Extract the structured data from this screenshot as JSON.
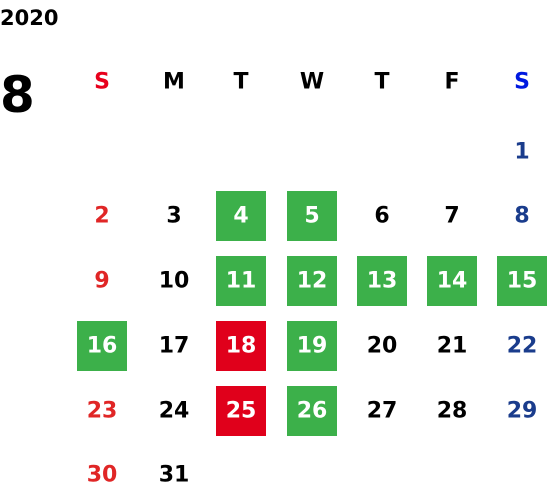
{
  "year": "2020",
  "month": "8",
  "weekdays": [
    "S",
    "M",
    "T",
    "W",
    "T",
    "F",
    "S"
  ],
  "header_colors": [
    "#e8001c",
    "#000000",
    "#000000",
    "#000000",
    "#000000",
    "#000000",
    "#0019e0"
  ],
  "day_colors": [
    "#e02626",
    "#000000",
    "#000000",
    "#000000",
    "#000000",
    "#000000",
    "#1a3c8c"
  ],
  "weeks": [
    [
      null,
      null,
      null,
      null,
      null,
      null,
      1
    ],
    [
      2,
      3,
      {
        "day": 4,
        "color": "#3cb04a"
      },
      {
        "day": 5,
        "color": "#3cb04a"
      },
      6,
      7,
      8
    ],
    [
      9,
      10,
      {
        "day": 11,
        "color": "#3cb04a"
      },
      {
        "day": 12,
        "color": "#3cb04a"
      },
      {
        "day": 13,
        "color": "#3cb04a"
      },
      {
        "day": 14,
        "color": "#3cb04a"
      },
      {
        "day": 15,
        "color": "#3cb04a"
      }
    ],
    [
      {
        "day": 16,
        "color": "#3cb04a"
      },
      17,
      {
        "day": 18,
        "color": "#e0001b"
      },
      {
        "day": 19,
        "color": "#3cb04a"
      },
      20,
      21,
      22
    ],
    [
      23,
      24,
      {
        "day": 25,
        "color": "#e0001b"
      },
      {
        "day": 26,
        "color": "#3cb04a"
      },
      27,
      28,
      29
    ],
    [
      30,
      31,
      null,
      null,
      null,
      null,
      null
    ]
  ]
}
